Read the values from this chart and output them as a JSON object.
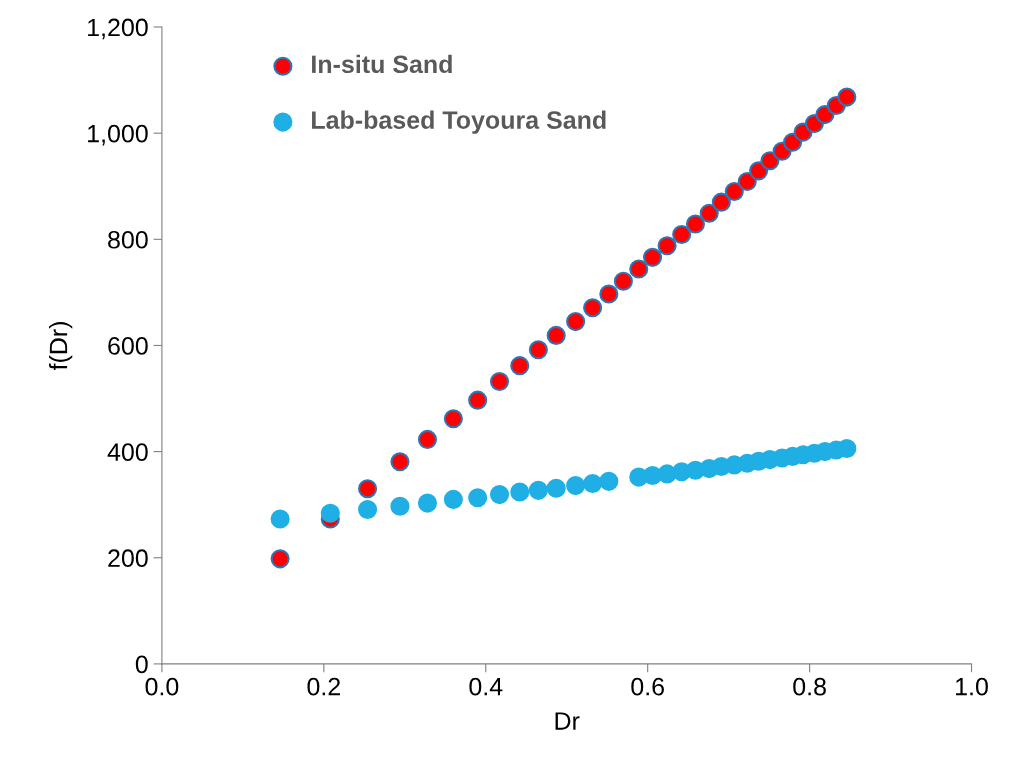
{
  "chart_data": {
    "type": "scatter",
    "xlabel": "Dr",
    "ylabel": "f(Dr)",
    "x": [
      0.146,
      0.208,
      0.254,
      0.294,
      0.328,
      0.36,
      0.39,
      0.417,
      0.442,
      0.465,
      0.487,
      0.511,
      0.532,
      0.552,
      0.57,
      0.589,
      0.606,
      0.624,
      0.642,
      0.659,
      0.676,
      0.691,
      0.707,
      0.723,
      0.737,
      0.751,
      0.766,
      0.779,
      0.792,
      0.806,
      0.819,
      0.833,
      0.846
    ],
    "series": [
      {
        "name": "In-situ Sand",
        "color": "#ff0000",
        "values": [
          198,
          273,
          330,
          381,
          423,
          462,
          497,
          532,
          562,
          592,
          619,
          645,
          671,
          697,
          721,
          744,
          766,
          788,
          809,
          829,
          849,
          870,
          890,
          909,
          929,
          948,
          966,
          983,
          1002,
          1018,
          1035,
          1052,
          1068
        ]
      },
      {
        "name": "Lab-based Toyoura Sand",
        "color": "#1fafe4",
        "values": [
          273,
          284,
          291,
          297,
          303,
          310,
          313,
          319,
          324,
          327,
          331,
          336,
          340,
          344,
          null,
          352,
          355,
          358,
          362,
          365,
          368,
          372,
          375,
          378,
          382,
          385,
          388,
          391,
          394,
          397,
          400,
          403,
          406
        ]
      }
    ],
    "xlim": [
      0,
      1.0
    ],
    "xticks": [
      {
        "value": 0,
        "label": "0.0"
      },
      {
        "value": 0.2,
        "label": "0.2"
      },
      {
        "value": 0.4,
        "label": "0.4"
      },
      {
        "value": 0.6,
        "label": "0.6"
      },
      {
        "value": 0.8,
        "label": "0.8"
      },
      {
        "value": 1.0,
        "label": "1.0"
      }
    ],
    "ylim": [
      0,
      1200
    ],
    "yticks": [
      {
        "value": 0,
        "label": "0"
      },
      {
        "value": 200,
        "label": "200"
      },
      {
        "value": 400,
        "label": "400"
      },
      {
        "value": 600,
        "label": "600"
      },
      {
        "value": 800,
        "label": "800"
      },
      {
        "value": 1000,
        "label": "1,000"
      },
      {
        "value": 1200,
        "label": "1,200"
      }
    ],
    "grid": false,
    "legend": "top left",
    "marker": "circle"
  }
}
